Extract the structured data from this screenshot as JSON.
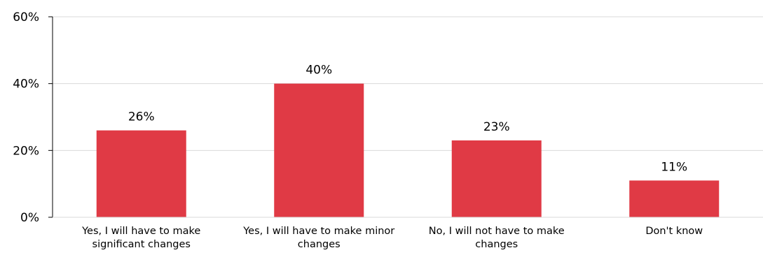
{
  "chart_data": {
    "type": "bar",
    "title": "",
    "xlabel": "",
    "ylabel": "",
    "ylim": [
      0,
      60
    ],
    "yticks": [
      "0%",
      "20%",
      "40%",
      "60%"
    ],
    "ytick_values": [
      0,
      20,
      40,
      60
    ],
    "grid": true,
    "legend": "none",
    "categories": [
      [
        "Yes, I will  have to make",
        "significant changes"
      ],
      [
        "Yes, I will have to make minor",
        "changes"
      ],
      [
        "No, I will not have to make",
        "changes"
      ],
      [
        "Don't know"
      ]
    ],
    "values": [
      26,
      40,
      23,
      11
    ],
    "data_labels": [
      "26%",
      "40%",
      "23%",
      "11%"
    ],
    "bar_color": "#E03A45",
    "grid_color": "#D9D9D9",
    "axis_color": "#000000"
  }
}
